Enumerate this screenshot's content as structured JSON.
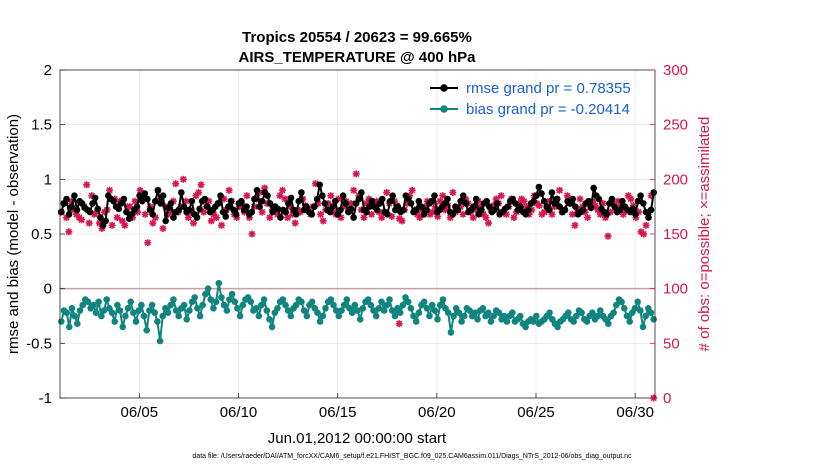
{
  "chart_data": {
    "type": "line",
    "title_line1": "Tropics 20554 / 20623 = 99.665%",
    "title_line2": "AIRS_TEMPERATURE @ 400 hPa",
    "xlabel": "Jun.01,2012 00:00:00 start",
    "ylabel_left": "rmse and bias (model - observation)",
    "ylabel_right": "# of obs: o=possible; ×=assimilated",
    "left_ylim": [
      -1,
      2
    ],
    "right_ylim": [
      0,
      300
    ],
    "xlim": [
      1,
      31
    ],
    "left_yticks": [
      "-1",
      "-0.5",
      "0",
      "0.5",
      "1",
      "1.5",
      "2"
    ],
    "right_yticks": [
      "0",
      "50",
      "100",
      "150",
      "200",
      "250",
      "300"
    ],
    "xtick_values": [
      5,
      10,
      15,
      20,
      25,
      30
    ],
    "xtick_labels": [
      "06/05",
      "06/10",
      "06/15",
      "06/20",
      "06/25",
      "06/30"
    ],
    "legend": {
      "rmse_label": "rmse grand pr = 0.78355",
      "bias_label": "bias grand pr = -0.20414"
    },
    "footnote": "data file: /Users/raeder/DAI/ATM_forcXX/CAM6_setup/f.e21.FHIST_BGC.f09_025.CAM6assim.011/Diags_NTrS_2012-06/obs_diag_output.nc",
    "colors": {
      "rmse": "#000000",
      "bias": "#10847e",
      "obs": "#d6184f",
      "left_axis": "#000000",
      "right_axis": "#d6184f",
      "zero_line": "#c8a0a0"
    },
    "series": [
      {
        "name": "rmse",
        "axis": "left",
        "values": [
          0.7,
          0.78,
          0.82,
          0.68,
          0.75,
          0.85,
          0.72,
          0.8,
          0.78,
          0.74,
          0.72,
          0.7,
          0.78,
          0.83,
          0.73,
          0.65,
          0.58,
          0.62,
          0.85,
          0.82,
          0.8,
          0.75,
          0.73,
          0.78,
          0.82,
          0.7,
          0.64,
          0.68,
          0.72,
          0.75,
          0.85,
          0.8,
          0.87,
          0.82,
          0.72,
          0.68,
          0.8,
          0.9,
          0.78,
          0.85,
          0.62,
          0.74,
          0.78,
          0.65,
          0.7,
          0.72,
          0.88,
          0.75,
          0.7,
          0.72,
          0.8,
          0.68,
          0.65,
          0.73,
          0.8,
          0.82,
          0.75,
          0.7,
          0.72,
          0.75,
          0.78,
          0.85,
          0.7,
          0.66,
          0.75,
          0.8,
          0.72,
          0.68,
          0.78,
          0.8,
          0.72,
          0.75,
          0.68,
          0.7,
          0.82,
          0.9,
          0.75,
          0.8,
          0.88,
          0.85,
          0.78,
          0.7,
          0.75,
          0.73,
          0.65,
          0.72,
          0.7,
          0.78,
          0.83,
          0.72,
          0.68,
          0.8,
          0.88,
          0.72,
          0.75,
          0.7,
          0.68,
          0.75,
          0.82,
          0.95,
          0.85,
          0.78,
          0.72,
          0.7,
          0.75,
          0.8,
          0.68,
          0.72,
          0.85,
          0.78,
          0.7,
          0.73,
          0.65,
          0.78,
          0.82,
          0.88,
          0.72,
          0.7,
          0.75,
          0.8,
          0.75,
          0.72,
          0.78,
          0.82,
          0.7,
          0.68,
          0.8,
          0.85,
          0.72,
          0.75,
          0.7,
          0.72,
          0.85,
          0.82,
          0.78,
          0.7,
          0.72,
          0.8,
          0.75,
          0.68,
          0.72,
          0.78,
          0.8,
          0.85,
          0.7,
          0.72,
          0.75,
          0.78,
          0.82,
          0.7,
          0.68,
          0.75,
          0.72,
          0.8,
          0.85,
          0.78,
          0.7,
          0.72,
          0.75,
          0.82,
          0.68,
          0.72,
          0.78,
          0.8,
          0.75,
          0.7,
          0.72,
          0.78,
          0.68,
          0.7,
          0.73,
          0.75,
          0.8,
          0.82,
          0.78,
          0.72,
          0.75,
          0.7,
          0.68,
          0.72,
          0.78,
          0.8,
          0.85,
          0.93,
          0.87,
          0.8,
          0.75,
          0.72,
          0.88,
          0.78,
          0.82,
          0.75,
          0.7,
          0.72,
          0.8,
          0.78,
          0.82,
          0.75,
          0.68,
          0.7,
          0.72,
          0.78,
          0.8,
          0.74,
          0.92,
          0.85,
          0.82,
          0.73,
          0.7,
          0.68,
          0.78,
          0.82,
          0.75,
          0.7,
          0.72,
          0.8,
          0.75,
          0.72,
          0.7,
          0.73,
          0.68,
          0.8,
          0.85,
          0.78,
          0.7,
          0.65,
          0.72,
          0.88
        ]
      },
      {
        "name": "bias",
        "axis": "left",
        "values": [
          -0.3,
          -0.2,
          -0.22,
          -0.35,
          -0.18,
          -0.25,
          -0.32,
          -0.2,
          -0.15,
          -0.1,
          -0.12,
          -0.18,
          -0.15,
          -0.22,
          -0.12,
          -0.25,
          -0.2,
          -0.1,
          -0.18,
          -0.22,
          -0.3,
          -0.15,
          -0.2,
          -0.35,
          -0.25,
          -0.18,
          -0.12,
          -0.22,
          -0.3,
          -0.2,
          -0.15,
          -0.25,
          -0.38,
          -0.2,
          -0.15,
          -0.22,
          -0.3,
          -0.48,
          -0.25,
          -0.18,
          -0.22,
          -0.15,
          -0.1,
          -0.2,
          -0.25,
          -0.18,
          -0.15,
          -0.28,
          -0.2,
          -0.12,
          -0.08,
          -0.18,
          -0.25,
          -0.15,
          -0.05,
          0.0,
          -0.1,
          -0.18,
          -0.12,
          0.05,
          -0.08,
          -0.15,
          -0.2,
          -0.1,
          -0.05,
          -0.12,
          -0.18,
          -0.25,
          -0.15,
          -0.1,
          -0.08,
          -0.12,
          -0.2,
          -0.18,
          -0.25,
          -0.15,
          -0.1,
          -0.2,
          -0.28,
          -0.35,
          -0.22,
          -0.18,
          -0.12,
          -0.1,
          -0.15,
          -0.2,
          -0.25,
          -0.18,
          -0.15,
          -0.1,
          -0.12,
          -0.2,
          -0.25,
          -0.15,
          -0.12,
          -0.18,
          -0.22,
          -0.3,
          -0.25,
          -0.18,
          -0.12,
          -0.1,
          -0.15,
          -0.2,
          -0.25,
          -0.2,
          -0.15,
          -0.1,
          -0.18,
          -0.22,
          -0.15,
          -0.2,
          -0.28,
          -0.18,
          -0.12,
          -0.1,
          -0.15,
          -0.2,
          -0.25,
          -0.18,
          -0.12,
          -0.2,
          -0.15,
          -0.1,
          -0.2,
          -0.25,
          -0.18,
          -0.22,
          -0.15,
          -0.08,
          -0.12,
          -0.18,
          -0.25,
          -0.3,
          -0.22,
          -0.15,
          -0.12,
          -0.18,
          -0.25,
          -0.15,
          -0.2,
          -0.28,
          -0.15,
          -0.1,
          -0.18,
          -0.22,
          -0.4,
          -0.25,
          -0.18,
          -0.22,
          -0.3,
          -0.25,
          -0.18,
          -0.2,
          -0.25,
          -0.22,
          -0.28,
          -0.2,
          -0.18,
          -0.25,
          -0.22,
          -0.3,
          -0.25,
          -0.2,
          -0.22,
          -0.28,
          -0.25,
          -0.3,
          -0.25,
          -0.22,
          -0.3,
          -0.28,
          -0.25,
          -0.32,
          -0.35,
          -0.3,
          -0.28,
          -0.3,
          -0.25,
          -0.32,
          -0.3,
          -0.28,
          -0.25,
          -0.22,
          -0.28,
          -0.32,
          -0.35,
          -0.3,
          -0.28,
          -0.25,
          -0.22,
          -0.28,
          -0.3,
          -0.25,
          -0.2,
          -0.22,
          -0.28,
          -0.3,
          -0.25,
          -0.22,
          -0.28,
          -0.25,
          -0.2,
          -0.25,
          -0.28,
          -0.32,
          -0.25,
          -0.22,
          -0.15,
          -0.1,
          -0.12,
          -0.18,
          -0.25,
          -0.3,
          -0.22,
          -0.18,
          -0.12,
          -0.2,
          -0.35,
          -0.25,
          -0.18,
          -0.22,
          -0.28
        ]
      },
      {
        "name": "obs possible/assimilated",
        "axis": "right",
        "values": [
          170,
          178,
          165,
          152,
          180,
          172,
          168,
          165,
          163,
          175,
          195,
          160,
          185,
          168,
          170,
          160,
          155,
          170,
          172,
          190,
          158,
          182,
          165,
          180,
          162,
          158,
          175,
          175,
          165,
          180,
          170,
          190,
          185,
          168,
          142,
          175,
          160,
          165,
          190,
          182,
          155,
          175,
          168,
          172,
          180,
          196,
          170,
          175,
          200,
          180,
          165,
          170,
          160,
          185,
          188,
          195,
          170,
          175,
          180,
          162,
          168,
          165,
          178,
          158,
          182,
          172,
          190,
          180,
          168,
          165,
          175,
          178,
          170,
          185,
          165,
          150,
          175,
          182,
          188,
          170,
          192,
          178,
          165,
          172,
          175,
          168,
          185,
          190,
          182,
          165,
          175,
          168,
          160,
          172,
          170,
          182,
          176,
          172,
          168,
          175,
          196,
          178,
          168,
          162,
          172,
          178,
          185,
          170,
          168,
          182,
          165,
          175,
          180,
          172,
          178,
          190,
          205,
          185,
          172,
          165,
          178,
          182,
          168,
          175,
          180,
          170,
          165,
          170,
          188,
          178,
          166,
          180,
          176,
          164,
          162,
          172,
          178,
          185,
          190,
          172,
          168,
          165,
          172,
          175,
          180,
          168,
          170,
          175,
          166,
          180,
          185,
          172,
          176,
          165,
          188,
          170,
          172,
          175,
          168,
          182,
          178,
          170,
          165,
          172,
          180,
          175,
          168,
          165,
          160,
          172,
          176,
          182,
          178,
          185,
          170,
          168,
          175,
          182,
          165,
          170,
          178,
          182,
          180,
          175,
          168,
          172,
          185,
          178,
          176,
          168,
          170,
          172,
          180,
          168,
          175,
          182,
          190,
          170,
          172,
          185,
          178,
          168,
          158,
          172,
          182,
          175,
          170,
          165,
          175,
          180,
          176,
          172,
          168,
          178,
          165,
          148,
          170,
          178,
          172,
          180,
          176,
          168,
          172,
          185,
          182,
          176,
          165,
          170,
          152,
          150,
          158,
          170,
          185,
          0
        ]
      }
    ],
    "red_outlier": {
      "x": 18.1,
      "y": -0.32
    }
  }
}
